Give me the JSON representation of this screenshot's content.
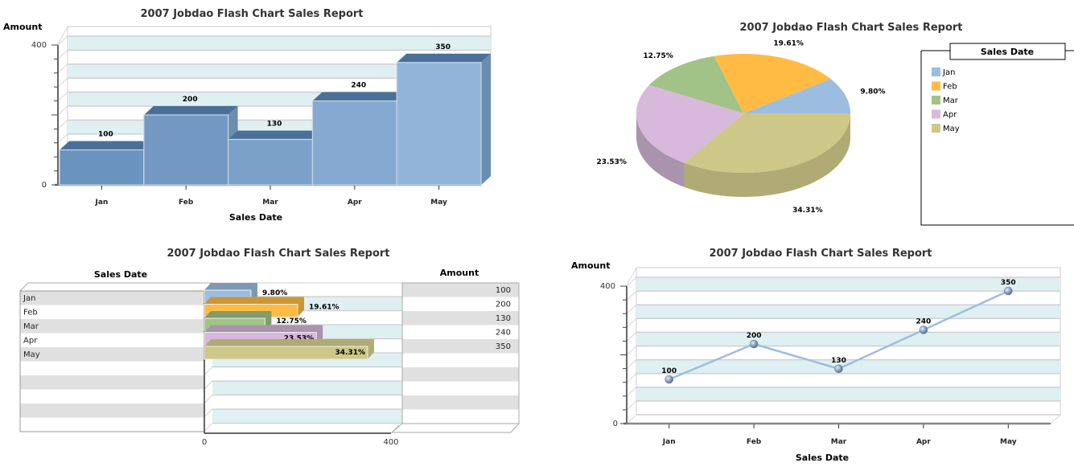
{
  "chart_data": [
    {
      "id": "bar3d",
      "type": "bar",
      "title": "2007 Jobdao Flash Chart Sales Report",
      "xlabel": "Sales Date",
      "ylabel": "Amount",
      "categories": [
        "Jan",
        "Feb",
        "Mar",
        "Apr",
        "May"
      ],
      "values": [
        100,
        200,
        130,
        240,
        350
      ],
      "data_labels": [
        "100",
        "200",
        "130",
        "240",
        "350"
      ],
      "ylim": [
        0,
        400
      ],
      "y_tick_labels": [
        "0",
        "400"
      ],
      "minor_ticks": 10,
      "grid": true,
      "colors": [
        "#6a94be",
        "#7399c2",
        "#7ba1c8",
        "#85a9d0",
        "#92b4d8"
      ],
      "top_color": "#4a7099",
      "side_color": "#6a8db0"
    },
    {
      "id": "pie3d",
      "type": "pie",
      "title": "2007 Jobdao Flash Chart Sales Report",
      "categories": [
        "Jan",
        "Feb",
        "Mar",
        "Apr",
        "May"
      ],
      "values": [
        100,
        200,
        130,
        240,
        350
      ],
      "percent_labels": [
        "9.80%",
        "19.61%",
        "12.75%",
        "23.53%",
        "34.31%"
      ],
      "colors": [
        "#9dbde0",
        "#ffbb44",
        "#a2c387",
        "#d8b8db",
        "#cdc887"
      ],
      "side_colors": [
        "#7d98b4",
        "#cc9636",
        "#829c6c",
        "#a993ad",
        "#b0ab74"
      ],
      "legend": {
        "title": "Sales Date",
        "placement": "right"
      }
    },
    {
      "id": "hbar-table",
      "type": "bar",
      "orientation": "horizontal",
      "title": "2007 Jobdao Flash Chart Sales Report",
      "left_column_header": "Sales Date",
      "right_column_header": "Amount",
      "categories": [
        "Jan",
        "Feb",
        "Mar",
        "Apr",
        "May"
      ],
      "values": [
        100,
        200,
        130,
        240,
        350
      ],
      "amount_labels": [
        "100",
        "200",
        "130",
        "240",
        "350"
      ],
      "percent_labels": [
        "9.80%",
        "19.61%",
        "12.75%",
        "23.53%",
        "34.31%"
      ],
      "xlim": [
        0,
        400
      ],
      "x_tick_labels": [
        "0",
        "400"
      ],
      "colors": [
        "#9dbde0",
        "#ffbb44",
        "#a2c387",
        "#d8b8db",
        "#cdc887"
      ],
      "side_colors": [
        "#7d98b4",
        "#cc9636",
        "#829c6c",
        "#a993ad",
        "#b0ab74"
      ],
      "table_rows": 10
    },
    {
      "id": "line3d",
      "type": "line",
      "title": "2007 Jobdao Flash Chart Sales Report",
      "xlabel": "Sales Date",
      "ylabel": "Amount",
      "categories": [
        "Jan",
        "Feb",
        "Mar",
        "Apr",
        "May"
      ],
      "values": [
        100,
        200,
        130,
        240,
        350
      ],
      "data_labels": [
        "100",
        "200",
        "130",
        "240",
        "350"
      ],
      "ylim": [
        0,
        400
      ],
      "y_tick_labels": [
        "0",
        "400"
      ],
      "minor_ticks": 10,
      "grid": true,
      "line_color": "#9dbde0",
      "marker_color": "#8aa2c0"
    }
  ]
}
